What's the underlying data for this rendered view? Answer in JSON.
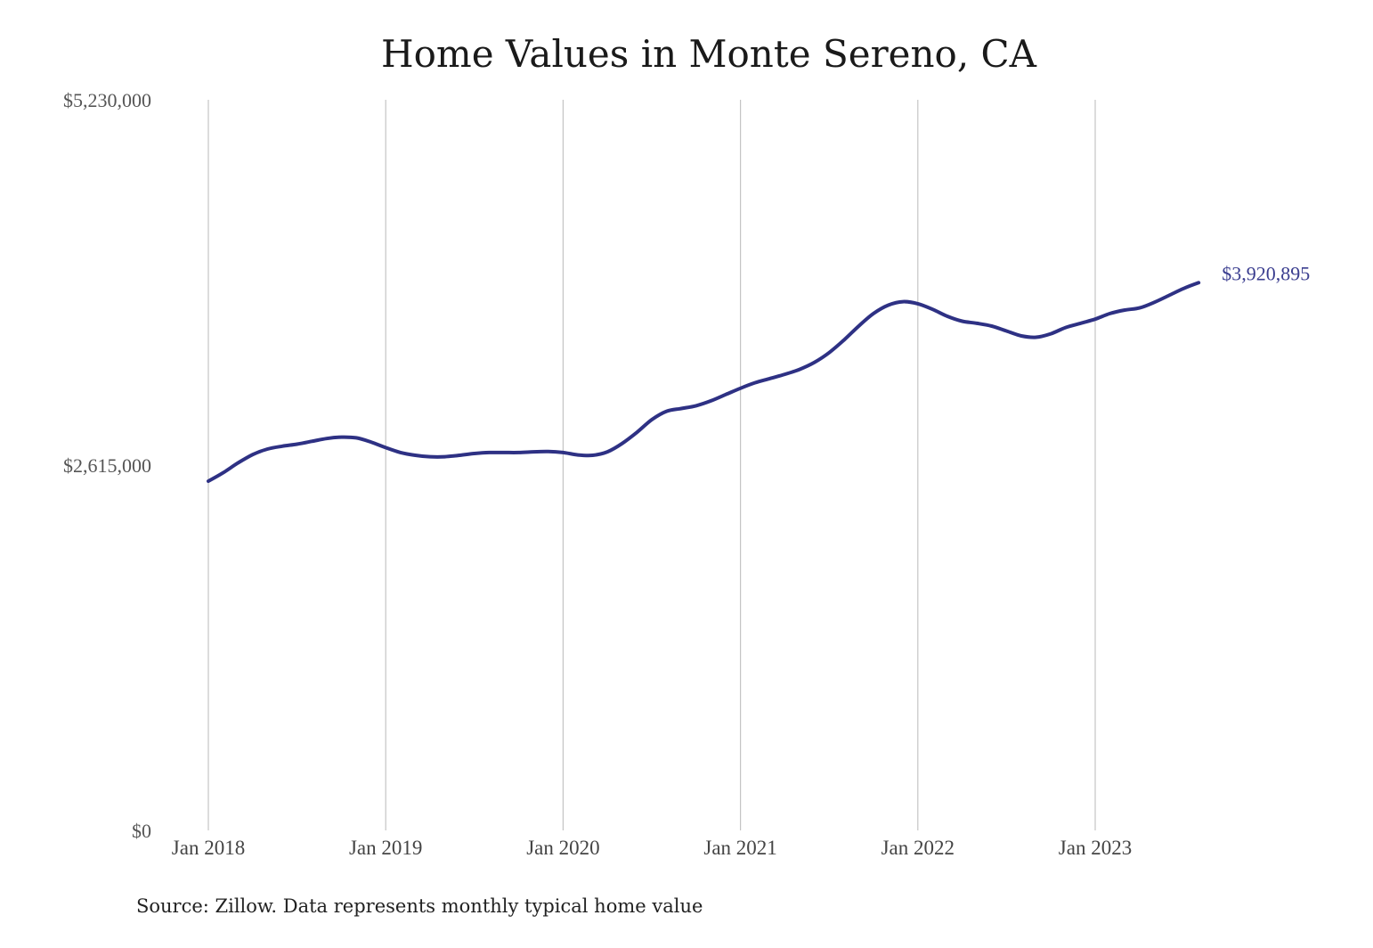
{
  "chart_data": {
    "type": "line",
    "title": "Home Values in Monte Sereno, CA",
    "source": "Source: Zillow. Data represents monthly typical home value",
    "ylim": [
      0,
      5230000
    ],
    "y_ticks": [
      {
        "value": 0,
        "label": "$0"
      },
      {
        "value": 2615000,
        "label": "$2,615,000"
      },
      {
        "value": 5230000,
        "label": "$5,230,000"
      }
    ],
    "x_ticks": [
      {
        "date": "2018-01",
        "label": "Jan 2018"
      },
      {
        "date": "2019-01",
        "label": "Jan 2019"
      },
      {
        "date": "2020-01",
        "label": "Jan 2020"
      },
      {
        "date": "2021-01",
        "label": "Jan 2021"
      },
      {
        "date": "2022-01",
        "label": "Jan 2022"
      },
      {
        "date": "2023-01",
        "label": "Jan 2023"
      }
    ],
    "grid": "vertical",
    "end_label": "$3,920,895",
    "colors": {
      "line": "#2e3184",
      "end_label": "#3a3d8f"
    },
    "x": [
      "2018-01",
      "2018-02",
      "2018-03",
      "2018-04",
      "2018-05",
      "2018-06",
      "2018-07",
      "2018-08",
      "2018-09",
      "2018-10",
      "2018-11",
      "2018-12",
      "2019-01",
      "2019-02",
      "2019-03",
      "2019-04",
      "2019-05",
      "2019-06",
      "2019-07",
      "2019-08",
      "2019-09",
      "2019-10",
      "2019-11",
      "2019-12",
      "2020-01",
      "2020-02",
      "2020-03",
      "2020-04",
      "2020-05",
      "2020-06",
      "2020-07",
      "2020-08",
      "2020-09",
      "2020-10",
      "2020-11",
      "2020-12",
      "2021-01",
      "2021-02",
      "2021-03",
      "2021-04",
      "2021-05",
      "2021-06",
      "2021-07",
      "2021-08",
      "2021-09",
      "2021-10",
      "2021-11",
      "2021-12",
      "2022-01",
      "2022-02",
      "2022-03",
      "2022-04",
      "2022-05",
      "2022-06",
      "2022-07",
      "2022-08",
      "2022-09",
      "2022-10",
      "2022-11",
      "2022-12",
      "2023-01",
      "2023-02",
      "2023-03",
      "2023-04",
      "2023-05",
      "2023-06",
      "2023-07",
      "2023-08"
    ],
    "values": [
      2500000,
      2560000,
      2630000,
      2690000,
      2730000,
      2750000,
      2765000,
      2785000,
      2805000,
      2815000,
      2810000,
      2780000,
      2740000,
      2705000,
      2685000,
      2675000,
      2675000,
      2685000,
      2698000,
      2705000,
      2705000,
      2705000,
      2710000,
      2712000,
      2705000,
      2688000,
      2685000,
      2710000,
      2770000,
      2850000,
      2940000,
      3000000,
      3020000,
      3040000,
      3075000,
      3120000,
      3165000,
      3205000,
      3235000,
      3265000,
      3300000,
      3350000,
      3420000,
      3510000,
      3610000,
      3700000,
      3760000,
      3785000,
      3770000,
      3730000,
      3680000,
      3645000,
      3630000,
      3610000,
      3575000,
      3540000,
      3530000,
      3555000,
      3600000,
      3630000,
      3660000,
      3700000,
      3725000,
      3740000,
      3780000,
      3830000,
      3880000,
      3920895
    ]
  }
}
